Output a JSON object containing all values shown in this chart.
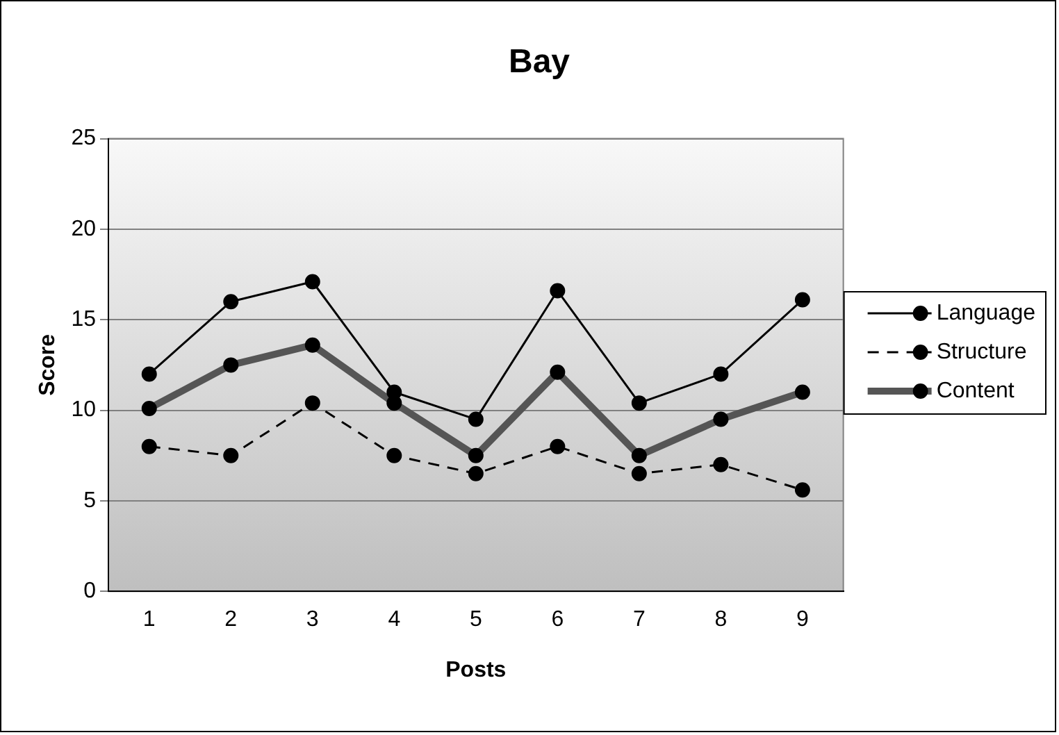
{
  "chart_data": {
    "type": "line",
    "title": "Bay",
    "xlabel": "Posts",
    "ylabel": "Score",
    "categories": [
      "1",
      "2",
      "3",
      "4",
      "5",
      "6",
      "7",
      "8",
      "9"
    ],
    "series": [
      {
        "name": "Language",
        "color": "#000000",
        "line_style": "solid",
        "values": [
          12,
          16,
          17.1,
          11,
          9.5,
          16.6,
          10.4,
          12,
          16.1
        ]
      },
      {
        "name": "Structure",
        "color": "#000000",
        "line_style": "dashed",
        "values": [
          8,
          7.5,
          10.4,
          7.5,
          6.5,
          8,
          6.5,
          7,
          5.6
        ]
      },
      {
        "name": "Content",
        "color": "#555555",
        "line_style": "solid",
        "values": [
          10.1,
          12.5,
          13.6,
          10.4,
          7.5,
          12.1,
          7.5,
          9.5,
          11
        ]
      }
    ],
    "ylim": [
      0,
      25
    ],
    "yticks": [
      0,
      5,
      10,
      15,
      20,
      25
    ],
    "grid": "y",
    "legend": "right",
    "marker": "circle"
  }
}
